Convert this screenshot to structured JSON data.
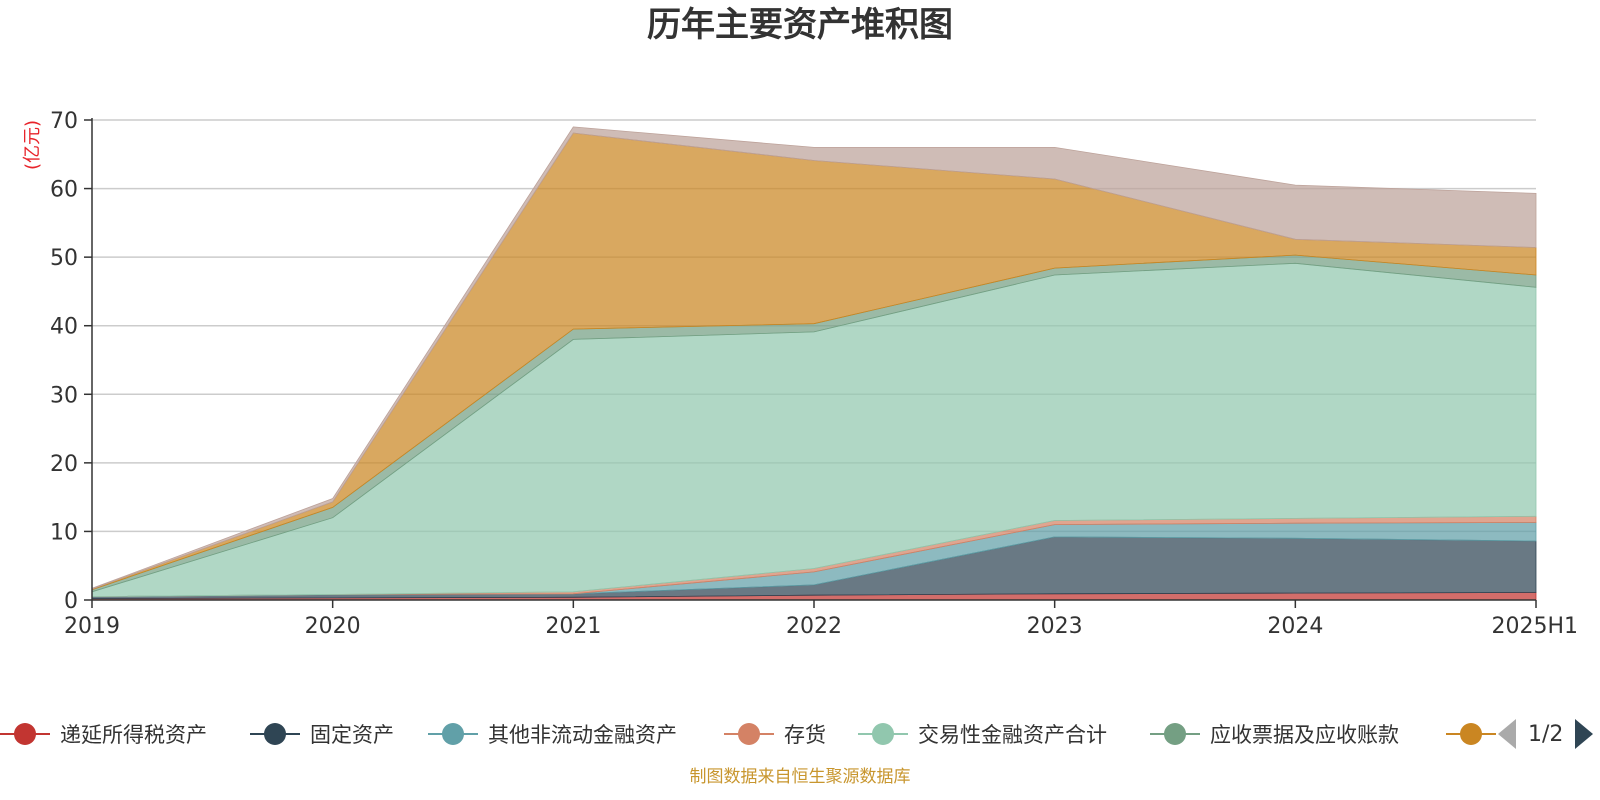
{
  "chart_data": {
    "type": "area",
    "stacked": true,
    "title": "历年主要资产堆积图",
    "ylabel": "(亿元)",
    "categories": [
      "2019",
      "2020",
      "2021",
      "2022",
      "2023",
      "2024",
      "2025H1"
    ],
    "ylim": [
      0,
      70
    ],
    "yticks": [
      0,
      10,
      20,
      30,
      40,
      50,
      60,
      70
    ],
    "grid": true,
    "series": [
      {
        "name": "递延所得税资产",
        "color": "#c23531",
        "values": [
          0.2,
          0.3,
          0.4,
          0.7,
          0.9,
          1.0,
          1.1
        ]
      },
      {
        "name": "固定资产",
        "color": "#2f4554",
        "values": [
          0.3,
          0.5,
          0.5,
          1.5,
          8.3,
          8.0,
          7.5
        ]
      },
      {
        "name": "其他非流动金融资产",
        "color": "#61a0a8",
        "values": [
          0.0,
          0.0,
          0.0,
          1.9,
          1.8,
          2.2,
          2.7
        ]
      },
      {
        "name": "存货",
        "color": "#d48265",
        "values": [
          0.0,
          0.0,
          0.3,
          0.5,
          0.6,
          0.7,
          0.9
        ]
      },
      {
        "name": "交易性金融资产合计",
        "color": "#91c7ae",
        "values": [
          0.7,
          11.2,
          36.8,
          34.5,
          35.8,
          37.2,
          33.4
        ]
      },
      {
        "name": "应收票据及应收账款",
        "color": "#749f83",
        "values": [
          0.3,
          1.5,
          1.5,
          1.2,
          1.0,
          1.2,
          1.8
        ]
      },
      {
        "name": "",
        "color": "#ca8622",
        "values": [
          0.1,
          0.8,
          28.6,
          23.8,
          13.0,
          2.3,
          4.0
        ]
      },
      {
        "name": "",
        "color": "#bda29a",
        "values": [
          0.1,
          0.5,
          0.9,
          1.9,
          4.6,
          7.9,
          7.9
        ]
      }
    ]
  },
  "legend": {
    "page_text": "1/2"
  },
  "source_note": "制图数据来自恒生聚源数据库"
}
